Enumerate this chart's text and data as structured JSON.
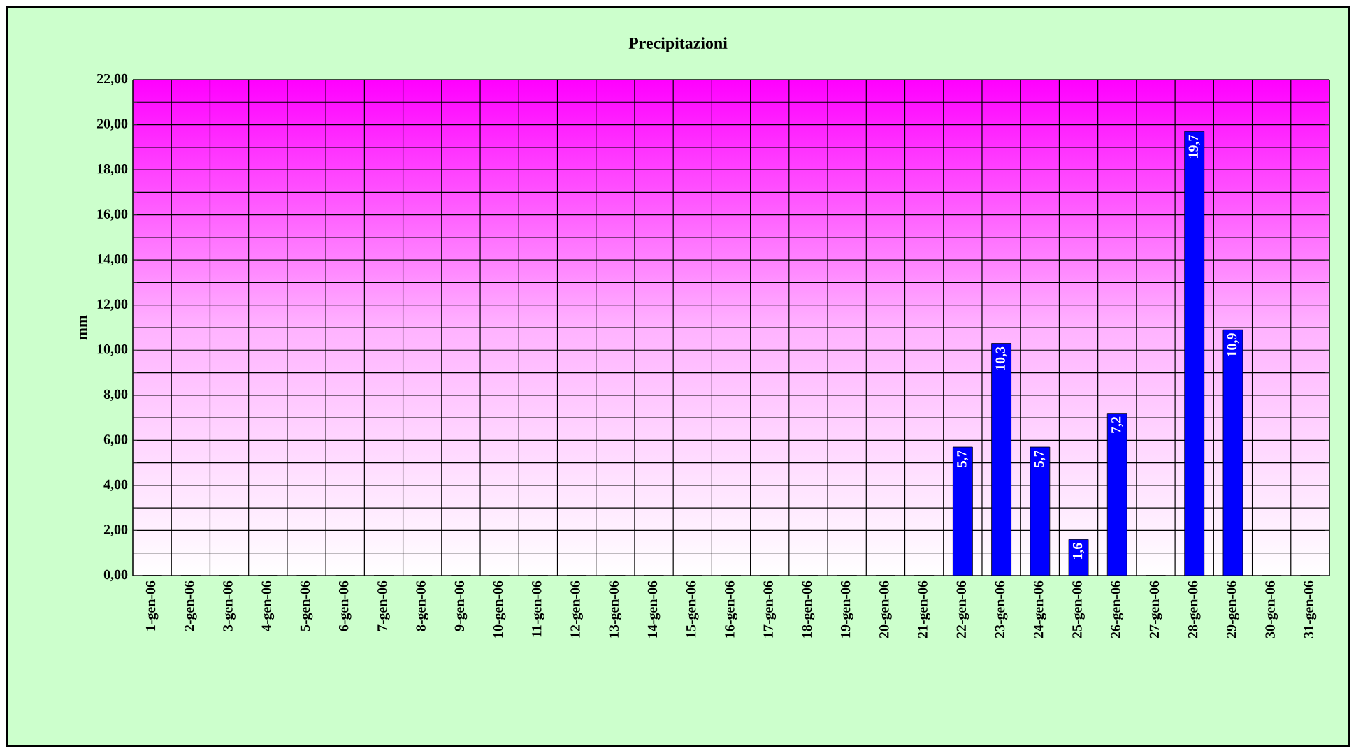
{
  "chart_data": {
    "type": "bar",
    "title": "Precipitazioni",
    "ylabel": "mm",
    "categories": [
      "1-gen-06",
      "2-gen-06",
      "3-gen-06",
      "4-gen-06",
      "5-gen-06",
      "6-gen-06",
      "7-gen-06",
      "8-gen-06",
      "9-gen-06",
      "10-gen-06",
      "11-gen-06",
      "12-gen-06",
      "13-gen-06",
      "14-gen-06",
      "15-gen-06",
      "16-gen-06",
      "17-gen-06",
      "18-gen-06",
      "19-gen-06",
      "20-gen-06",
      "21-gen-06",
      "22-gen-06",
      "23-gen-06",
      "24-gen-06",
      "25-gen-06",
      "26-gen-06",
      "27-gen-06",
      "28-gen-06",
      "29-gen-06",
      "30-gen-06",
      "31-gen-06"
    ],
    "values": [
      0,
      0,
      0,
      0,
      0,
      0,
      0,
      0,
      0,
      0,
      0,
      0,
      0,
      0,
      0,
      0,
      0,
      0,
      0,
      0,
      0,
      5.7,
      10.3,
      5.7,
      1.6,
      7.2,
      0,
      19.7,
      10.9,
      0,
      0
    ],
    "value_labels": [
      null,
      null,
      null,
      null,
      null,
      null,
      null,
      null,
      null,
      null,
      null,
      null,
      null,
      null,
      null,
      null,
      null,
      null,
      null,
      null,
      null,
      "5,7",
      "10,3",
      "5,7",
      "1,6",
      "7,2",
      null,
      "19,7",
      "10,9",
      null,
      null
    ],
    "color": "#0000ff",
    "ylim": [
      0,
      22
    ],
    "yticks": [
      {
        "value": 0,
        "label": "0,00"
      },
      {
        "value": 1,
        "label": null
      },
      {
        "value": 2,
        "label": "2,00"
      },
      {
        "value": 3,
        "label": null
      },
      {
        "value": 4,
        "label": "4,00"
      },
      {
        "value": 5,
        "label": null
      },
      {
        "value": 6,
        "label": "6,00"
      },
      {
        "value": 7,
        "label": null
      },
      {
        "value": 8,
        "label": "8,00"
      },
      {
        "value": 9,
        "label": null
      },
      {
        "value": 10,
        "label": "10,00"
      },
      {
        "value": 11,
        "label": null
      },
      {
        "value": 12,
        "label": "12,00"
      },
      {
        "value": 13,
        "label": null
      },
      {
        "value": 14,
        "label": "14,00"
      },
      {
        "value": 15,
        "label": null
      },
      {
        "value": 16,
        "label": "16,00"
      },
      {
        "value": 17,
        "label": null
      },
      {
        "value": 18,
        "label": "18,00"
      },
      {
        "value": 19,
        "label": null
      },
      {
        "value": 20,
        "label": "20,00"
      },
      {
        "value": 21,
        "label": null
      },
      {
        "value": 22,
        "label": "22,00"
      }
    ],
    "grid": true
  }
}
